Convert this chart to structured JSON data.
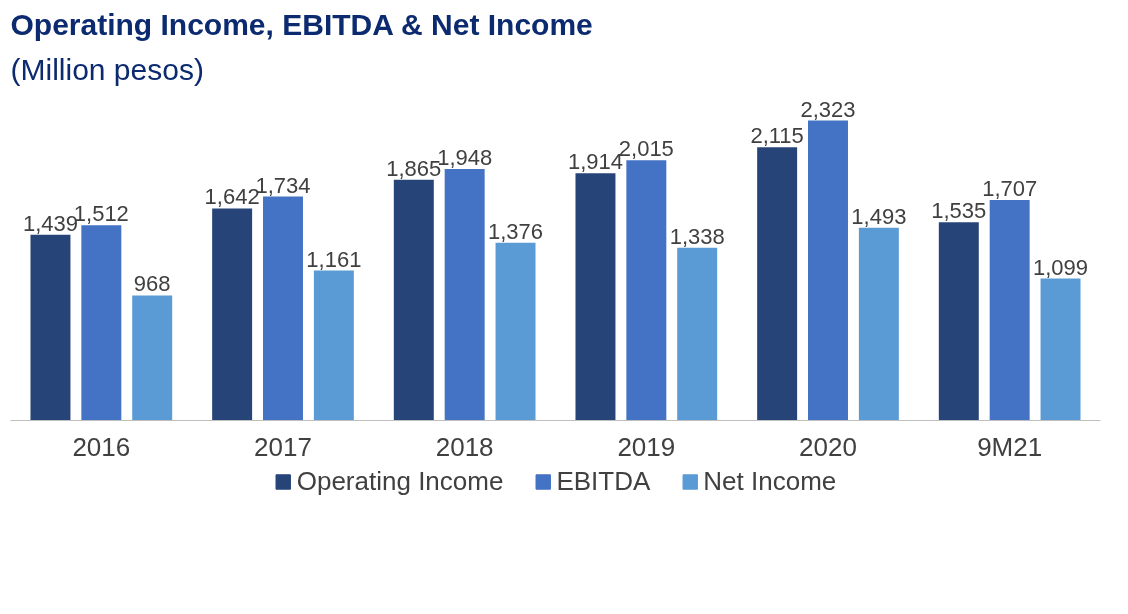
{
  "chart_data": {
    "type": "bar",
    "title": "Operating Income, EBITDA & Net Income",
    "subtitle": "(Million pesos)",
    "categories": [
      "2016",
      "2017",
      "2018",
      "2019",
      "2020",
      "9M21"
    ],
    "series": [
      {
        "name": "Operating Income",
        "color": "#264478",
        "values": [
          1439,
          1642,
          1865,
          1914,
          2115,
          1535
        ],
        "value_labels": [
          "1,439",
          "1,642",
          "1,865",
          "1,914",
          "2,115",
          "1,535"
        ]
      },
      {
        "name": "EBITDA",
        "color": "#4472c4",
        "values": [
          1512,
          1734,
          1948,
          2015,
          2323,
          1707
        ],
        "value_labels": [
          "1,512",
          "1,734",
          "1,948",
          "2,015",
          "2,323",
          "1,707"
        ]
      },
      {
        "name": "Net Income",
        "color": "#5b9bd5",
        "values": [
          968,
          1161,
          1376,
          1338,
          1493,
          1099
        ],
        "value_labels": [
          "968",
          "1,161",
          "1,376",
          "1,338",
          "1,493",
          "1,099"
        ]
      }
    ],
    "data_labels": true,
    "grid": false,
    "legend": "bottom",
    "tick_labels": "x"
  }
}
